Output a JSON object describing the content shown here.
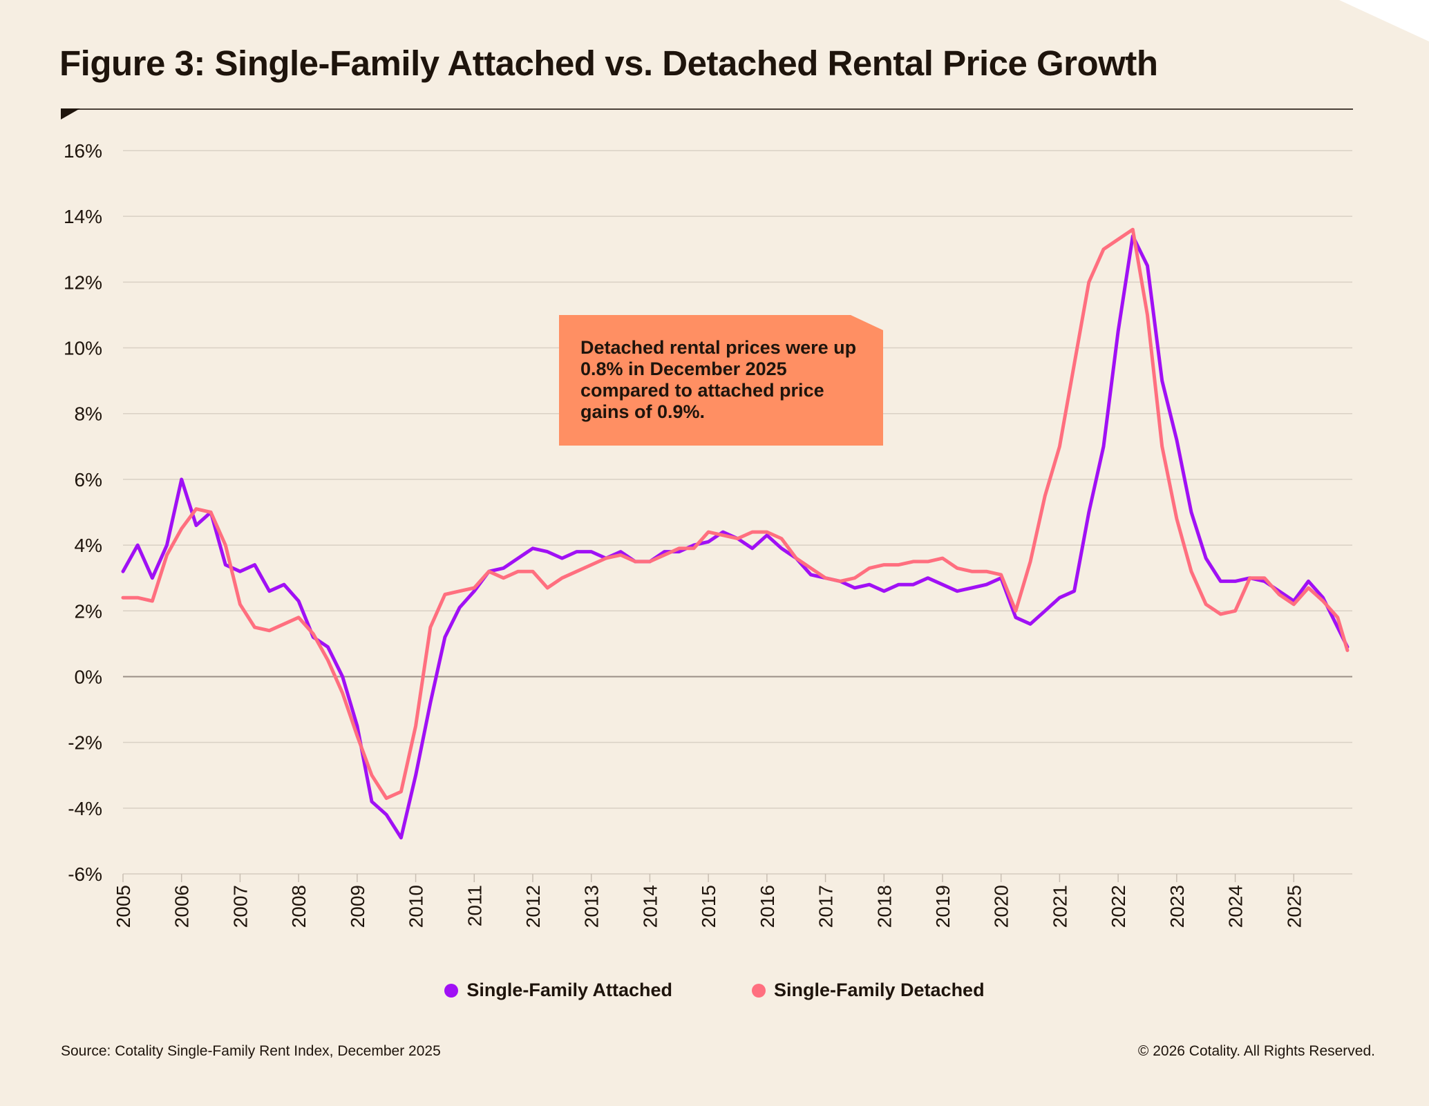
{
  "title": "Figure 3: Single-Family Attached vs. Detached Rental Price Growth",
  "callout": "Detached rental prices were up 0.8% in December 2025 compared to attached price gains of 0.9%.",
  "footer": {
    "source": "Source: Cotality Single-Family Rent Index, December 2025",
    "copyright": "© 2026 Cotality. All Rights Reserved."
  },
  "colors": {
    "background": "#F6EEE2",
    "callout": "#FF8F63",
    "attached": "#A010F5",
    "detached": "#FF6F7F"
  },
  "chart_data": {
    "type": "line",
    "xlabel": "",
    "ylabel": "",
    "ylim": [
      -6,
      16
    ],
    "yticks": [
      "-6%",
      "-4%",
      "-2%",
      "0%",
      "2%",
      "4%",
      "6%",
      "8%",
      "10%",
      "12%",
      "14%",
      "16%"
    ],
    "ytick_values": [
      -6,
      -4,
      -2,
      0,
      2,
      4,
      6,
      8,
      10,
      12,
      14,
      16
    ],
    "xticks": [
      "2005",
      "2006",
      "2007",
      "2008",
      "2009",
      "2010",
      "2011",
      "2012",
      "2013",
      "2014",
      "2015",
      "2016",
      "2017",
      "2018",
      "2019",
      "2020",
      "2021",
      "2022",
      "2023",
      "2024",
      "2025"
    ],
    "xlim": [
      "2005-01",
      "2025-12"
    ],
    "grid": true,
    "legend": "bottom",
    "x": [
      "2005-01",
      "2005-04",
      "2005-07",
      "2005-10",
      "2006-01",
      "2006-04",
      "2006-07",
      "2006-10",
      "2007-01",
      "2007-04",
      "2007-07",
      "2007-10",
      "2008-01",
      "2008-04",
      "2008-07",
      "2008-10",
      "2009-01",
      "2009-04",
      "2009-07",
      "2009-10",
      "2010-01",
      "2010-04",
      "2010-07",
      "2010-10",
      "2011-01",
      "2011-04",
      "2011-07",
      "2011-10",
      "2012-01",
      "2012-04",
      "2012-07",
      "2012-10",
      "2013-01",
      "2013-04",
      "2013-07",
      "2013-10",
      "2014-01",
      "2014-04",
      "2014-07",
      "2014-10",
      "2015-01",
      "2015-04",
      "2015-07",
      "2015-10",
      "2016-01",
      "2016-04",
      "2016-07",
      "2016-10",
      "2017-01",
      "2017-04",
      "2017-07",
      "2017-10",
      "2018-01",
      "2018-04",
      "2018-07",
      "2018-10",
      "2019-01",
      "2019-04",
      "2019-07",
      "2019-10",
      "2020-01",
      "2020-04",
      "2020-07",
      "2020-10",
      "2021-01",
      "2021-04",
      "2021-07",
      "2021-10",
      "2022-01",
      "2022-04",
      "2022-07",
      "2022-10",
      "2023-01",
      "2023-04",
      "2023-07",
      "2023-10",
      "2024-01",
      "2024-04",
      "2024-07",
      "2024-10",
      "2025-01",
      "2025-04",
      "2025-07",
      "2025-10",
      "2025-12"
    ],
    "series": [
      {
        "name": "Single-Family Attached",
        "color": "#A010F5",
        "values": [
          3.2,
          4.0,
          3.0,
          4.0,
          6.0,
          4.6,
          5.0,
          3.4,
          3.2,
          3.4,
          2.6,
          2.8,
          2.3,
          1.2,
          0.9,
          0.0,
          -1.5,
          -3.8,
          -4.2,
          -4.9,
          -3.0,
          -0.8,
          1.2,
          2.1,
          2.6,
          3.2,
          3.3,
          3.6,
          3.9,
          3.8,
          3.6,
          3.8,
          3.8,
          3.6,
          3.8,
          3.5,
          3.5,
          3.8,
          3.8,
          4.0,
          4.1,
          4.4,
          4.2,
          3.9,
          4.3,
          3.9,
          3.6,
          3.1,
          3.0,
          2.9,
          2.7,
          2.8,
          2.6,
          2.8,
          2.8,
          3.0,
          2.8,
          2.6,
          2.7,
          2.8,
          3.0,
          1.8,
          1.6,
          2.0,
          2.4,
          2.6,
          5.0,
          7.0,
          10.5,
          13.4,
          12.5,
          9.0,
          7.2,
          5.0,
          3.6,
          2.9,
          2.9,
          3.0,
          2.9,
          2.6,
          2.3,
          2.9,
          2.4,
          1.5,
          0.9
        ]
      },
      {
        "name": "Single-Family Detached",
        "color": "#FF6F7F",
        "values": [
          2.4,
          2.4,
          2.3,
          3.7,
          4.5,
          5.1,
          5.0,
          4.0,
          2.2,
          1.5,
          1.4,
          1.6,
          1.8,
          1.3,
          0.5,
          -0.5,
          -1.8,
          -3.0,
          -3.7,
          -3.5,
          -1.5,
          1.5,
          2.5,
          2.6,
          2.7,
          3.2,
          3.0,
          3.2,
          3.2,
          2.7,
          3.0,
          3.2,
          3.4,
          3.6,
          3.7,
          3.5,
          3.5,
          3.7,
          3.9,
          3.9,
          4.4,
          4.3,
          4.2,
          4.4,
          4.4,
          4.2,
          3.6,
          3.3,
          3.0,
          2.9,
          3.0,
          3.3,
          3.4,
          3.4,
          3.5,
          3.5,
          3.6,
          3.3,
          3.2,
          3.2,
          3.1,
          2.0,
          3.5,
          5.5,
          7.0,
          9.5,
          12.0,
          13.0,
          13.3,
          13.6,
          11.0,
          7.0,
          4.8,
          3.2,
          2.2,
          1.9,
          2.0,
          3.0,
          3.0,
          2.5,
          2.2,
          2.7,
          2.3,
          1.8,
          0.8
        ]
      }
    ]
  }
}
